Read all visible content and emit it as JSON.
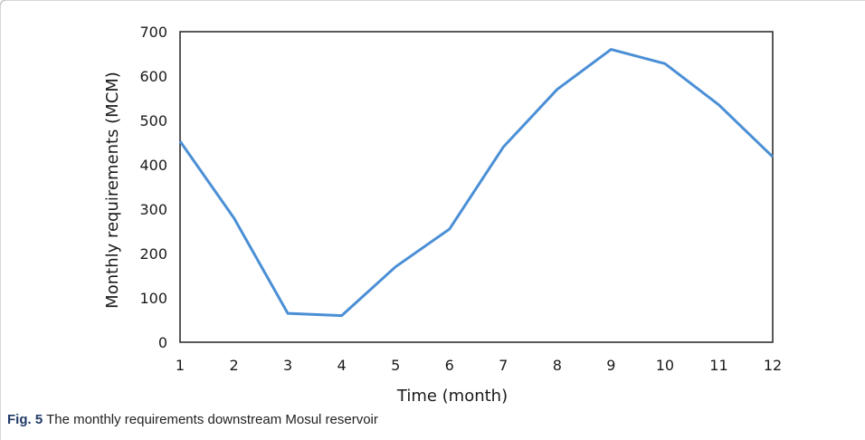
{
  "caption": {
    "number": "Fig. 5",
    "text": "The monthly requirements downstream Mosul reservoir"
  },
  "chart_data": {
    "type": "line",
    "xlabel": "Time (month)",
    "ylabel": "Monthly requirements (MCM)",
    "x": [
      1,
      2,
      3,
      4,
      5,
      6,
      7,
      8,
      9,
      10,
      11,
      12
    ],
    "series": [
      {
        "values": [
          453,
          280,
          65,
          60,
          170,
          255,
          440,
          570,
          660,
          628,
          535,
          418
        ]
      }
    ],
    "xlim": [
      1,
      12
    ],
    "ylim": [
      0,
      700
    ],
    "yticks": [
      0,
      100,
      200,
      300,
      400,
      500,
      600,
      700
    ],
    "xticks": [
      1,
      2,
      3,
      4,
      5,
      6,
      7,
      8,
      9,
      10,
      11,
      12
    ],
    "line_color": "#4a8fd6",
    "grid": false
  }
}
